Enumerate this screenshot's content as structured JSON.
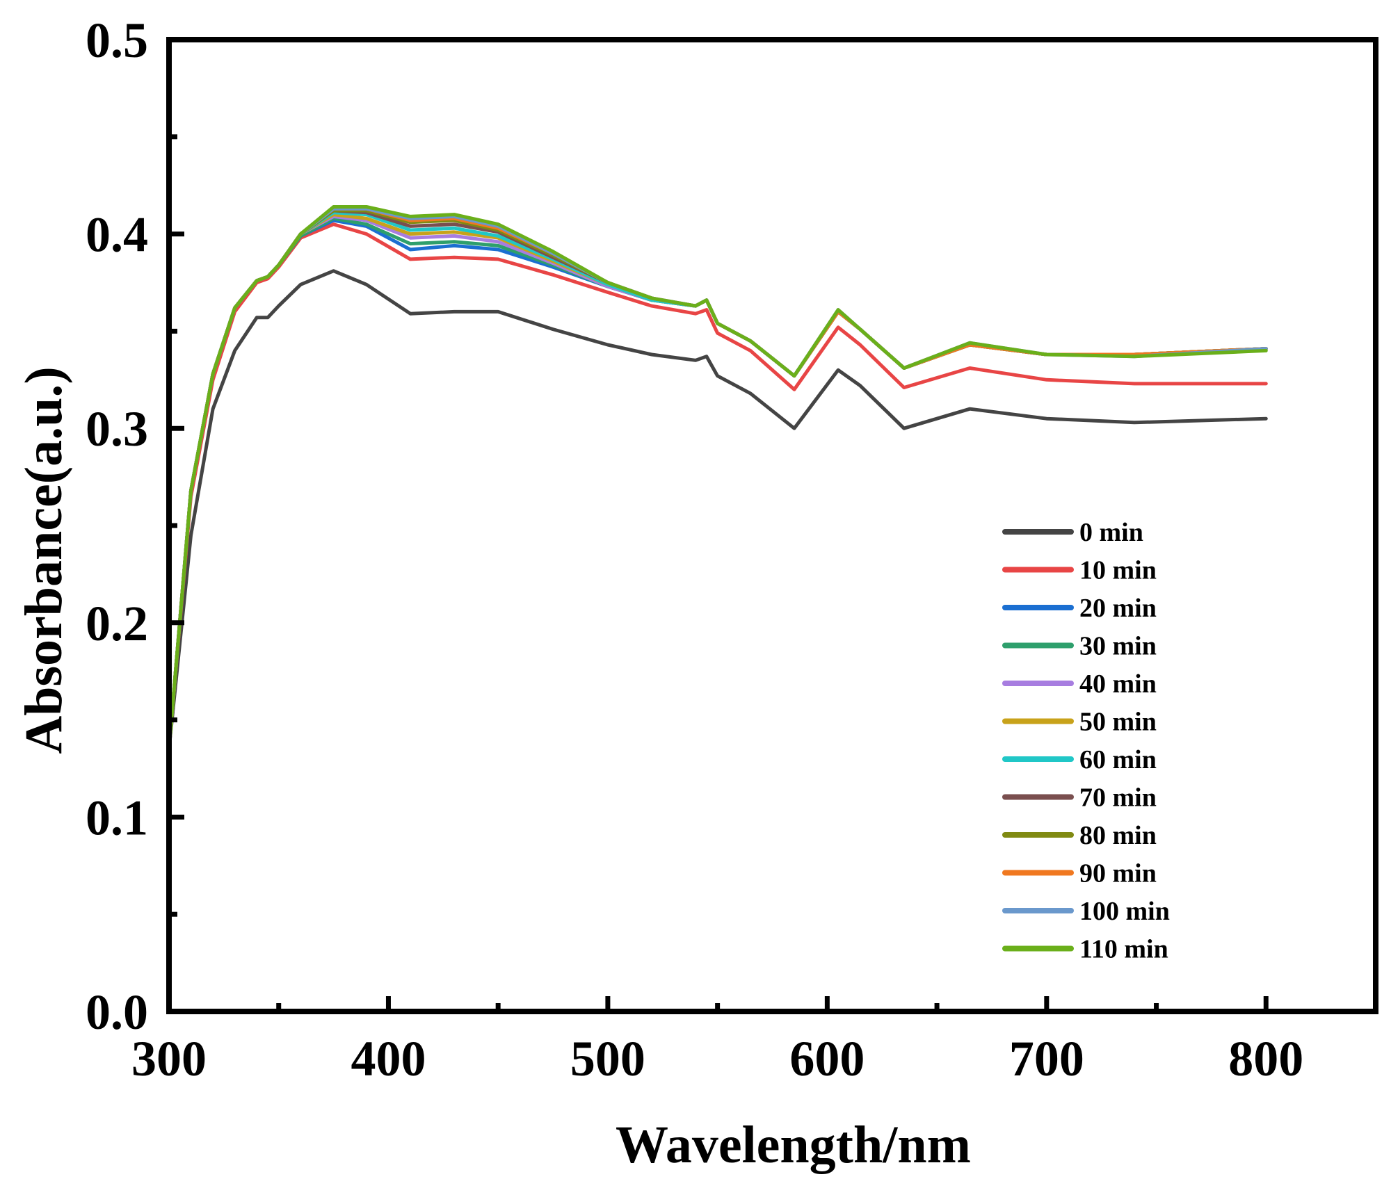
{
  "chart_data": {
    "type": "line",
    "title": "",
    "xlabel": "Wavelength/nm",
    "ylabel": "Absorbance(a.u.)",
    "xlim": [
      300,
      850
    ],
    "ylim": [
      0.0,
      0.5
    ],
    "xticks": [
      300,
      400,
      500,
      600,
      700,
      800
    ],
    "xtick_labels": [
      "300",
      "400",
      "500",
      "600",
      "700",
      "800"
    ],
    "yticks": [
      0.0,
      0.1,
      0.2,
      0.3,
      0.4,
      0.5
    ],
    "ytick_labels": [
      "0.0",
      "0.1",
      "0.2",
      "0.3",
      "0.4",
      "0.5"
    ],
    "grid": false,
    "legend_position": "center-right",
    "x": [
      300,
      310,
      320,
      330,
      340,
      345,
      350,
      360,
      375,
      390,
      410,
      430,
      450,
      475,
      500,
      520,
      540,
      545,
      550,
      565,
      585,
      605,
      615,
      635,
      665,
      700,
      740,
      800
    ],
    "series": [
      {
        "name": "0 min",
        "color": "#444444",
        "values": [
          0.135,
          0.245,
          0.31,
          0.34,
          0.357,
          0.357,
          0.363,
          0.374,
          0.381,
          0.374,
          0.359,
          0.36,
          0.36,
          0.351,
          0.343,
          0.338,
          0.335,
          0.337,
          0.327,
          0.318,
          0.3,
          0.33,
          0.322,
          0.3,
          0.31,
          0.305,
          0.303,
          0.305
        ]
      },
      {
        "name": "10 min",
        "color": "#e84545",
        "values": [
          0.135,
          0.265,
          0.325,
          0.36,
          0.375,
          0.377,
          0.383,
          0.398,
          0.405,
          0.4,
          0.387,
          0.388,
          0.387,
          0.379,
          0.37,
          0.363,
          0.359,
          0.361,
          0.349,
          0.34,
          0.32,
          0.352,
          0.343,
          0.321,
          0.331,
          0.325,
          0.323,
          0.323
        ]
      },
      {
        "name": "20 min",
        "color": "#1b6fd1",
        "values": [
          0.135,
          0.268,
          0.328,
          0.362,
          0.376,
          0.378,
          0.384,
          0.399,
          0.407,
          0.404,
          0.392,
          0.394,
          0.392,
          0.383,
          0.373,
          0.366,
          0.363,
          0.366,
          0.354,
          0.345,
          0.327,
          0.36,
          0.351,
          0.331,
          0.343,
          0.338,
          0.338,
          0.341
        ]
      },
      {
        "name": "30 min",
        "color": "#2e9f6c",
        "values": [
          0.135,
          0.268,
          0.328,
          0.362,
          0.376,
          0.378,
          0.384,
          0.399,
          0.408,
          0.405,
          0.395,
          0.396,
          0.394,
          0.384,
          0.373,
          0.366,
          0.363,
          0.366,
          0.354,
          0.345,
          0.327,
          0.36,
          0.351,
          0.331,
          0.343,
          0.338,
          0.338,
          0.341
        ]
      },
      {
        "name": "40 min",
        "color": "#a77de0",
        "values": [
          0.135,
          0.268,
          0.328,
          0.362,
          0.376,
          0.378,
          0.384,
          0.4,
          0.409,
          0.407,
          0.398,
          0.399,
          0.396,
          0.385,
          0.373,
          0.366,
          0.363,
          0.366,
          0.354,
          0.345,
          0.327,
          0.36,
          0.351,
          0.331,
          0.343,
          0.338,
          0.338,
          0.341
        ]
      },
      {
        "name": "50 min",
        "color": "#c8a21a",
        "values": [
          0.135,
          0.268,
          0.328,
          0.362,
          0.376,
          0.378,
          0.384,
          0.4,
          0.41,
          0.408,
          0.4,
          0.401,
          0.398,
          0.386,
          0.374,
          0.366,
          0.363,
          0.366,
          0.354,
          0.345,
          0.327,
          0.36,
          0.351,
          0.331,
          0.343,
          0.338,
          0.338,
          0.341
        ]
      },
      {
        "name": "60 min",
        "color": "#20c7c7",
        "values": [
          0.135,
          0.268,
          0.328,
          0.362,
          0.376,
          0.378,
          0.384,
          0.4,
          0.411,
          0.41,
          0.402,
          0.403,
          0.399,
          0.387,
          0.374,
          0.366,
          0.363,
          0.366,
          0.354,
          0.345,
          0.327,
          0.36,
          0.351,
          0.331,
          0.343,
          0.338,
          0.338,
          0.341
        ]
      },
      {
        "name": "70 min",
        "color": "#7a4f4f",
        "values": [
          0.135,
          0.268,
          0.328,
          0.362,
          0.376,
          0.378,
          0.384,
          0.4,
          0.412,
          0.411,
          0.404,
          0.405,
          0.401,
          0.388,
          0.375,
          0.367,
          0.363,
          0.366,
          0.354,
          0.345,
          0.327,
          0.36,
          0.351,
          0.331,
          0.343,
          0.338,
          0.338,
          0.341
        ]
      },
      {
        "name": "80 min",
        "color": "#808a12",
        "values": [
          0.135,
          0.268,
          0.328,
          0.362,
          0.376,
          0.378,
          0.384,
          0.4,
          0.412,
          0.412,
          0.406,
          0.407,
          0.402,
          0.389,
          0.375,
          0.367,
          0.363,
          0.366,
          0.354,
          0.345,
          0.327,
          0.36,
          0.351,
          0.331,
          0.343,
          0.338,
          0.338,
          0.341
        ]
      },
      {
        "name": "90 min",
        "color": "#f07820",
        "values": [
          0.135,
          0.268,
          0.328,
          0.362,
          0.376,
          0.378,
          0.384,
          0.4,
          0.413,
          0.413,
          0.407,
          0.408,
          0.403,
          0.39,
          0.375,
          0.367,
          0.363,
          0.366,
          0.354,
          0.345,
          0.327,
          0.36,
          0.351,
          0.331,
          0.343,
          0.338,
          0.338,
          0.341
        ]
      },
      {
        "name": "100 min",
        "color": "#6a98cc",
        "values": [
          0.135,
          0.268,
          0.328,
          0.362,
          0.376,
          0.378,
          0.384,
          0.4,
          0.413,
          0.413,
          0.408,
          0.409,
          0.404,
          0.39,
          0.375,
          0.367,
          0.363,
          0.366,
          0.354,
          0.345,
          0.327,
          0.361,
          0.351,
          0.331,
          0.344,
          0.338,
          0.337,
          0.341
        ]
      },
      {
        "name": "110 min",
        "color": "#6aaf1a",
        "values": [
          0.135,
          0.268,
          0.328,
          0.362,
          0.376,
          0.378,
          0.384,
          0.4,
          0.414,
          0.414,
          0.409,
          0.41,
          0.405,
          0.391,
          0.375,
          0.367,
          0.363,
          0.366,
          0.354,
          0.345,
          0.327,
          0.361,
          0.351,
          0.331,
          0.344,
          0.338,
          0.337,
          0.34
        ]
      }
    ]
  }
}
